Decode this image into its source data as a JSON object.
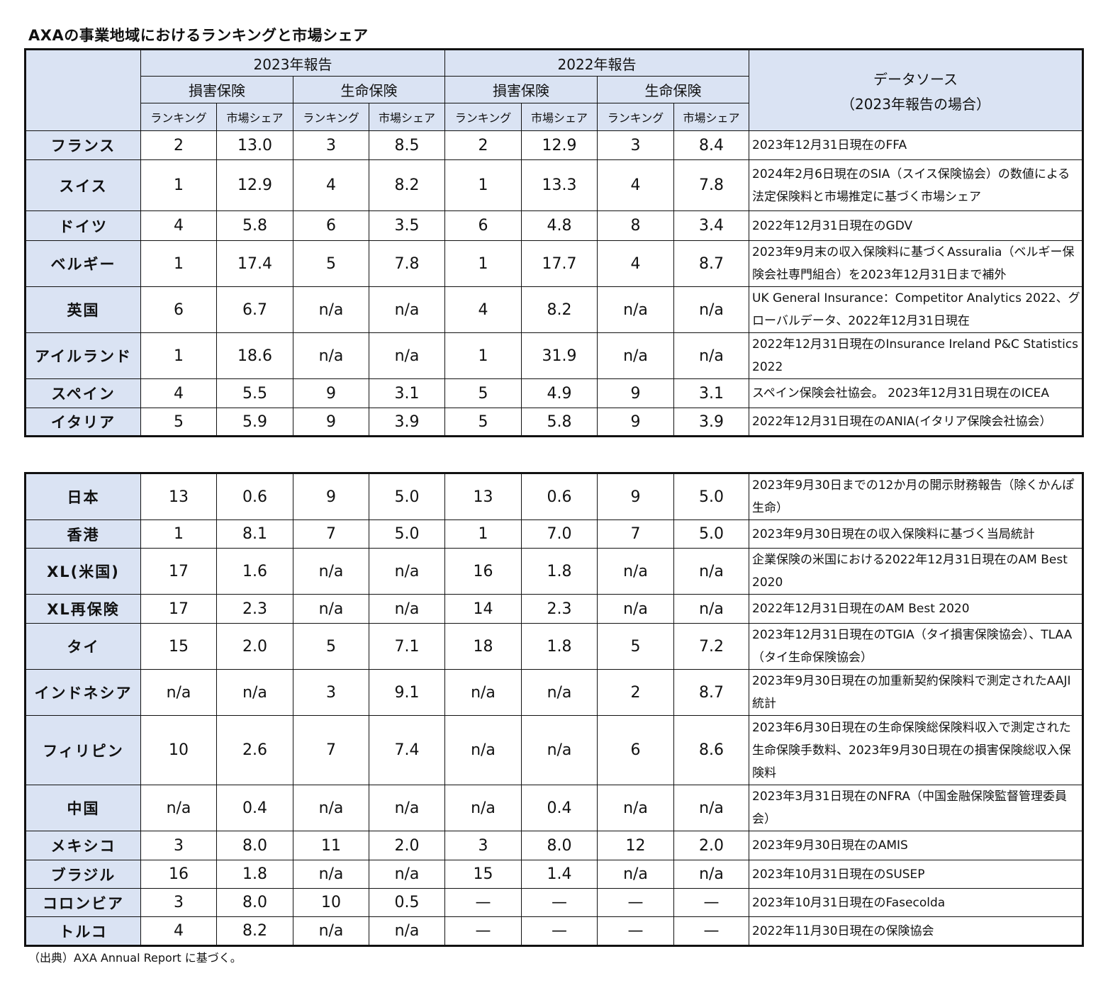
{
  "title": "AXAの事業地域におけるランキングと市場シェア",
  "header": {
    "year2023": "2023年報告",
    "year2022": "2022年報告",
    "nonlife": "損害保険",
    "life": "生命保険",
    "ranking": "ランキング",
    "share": "市場シェア",
    "source_line1": "データソース",
    "source_line2": "（2023年報告の場合）"
  },
  "table1": [
    {
      "country": "フランス",
      "values": [
        "2",
        "13.0",
        "3",
        "8.5",
        "2",
        "12.9",
        "3",
        "8.4"
      ],
      "source": "2023年12月31日現在のFFA"
    },
    {
      "country": "スイス",
      "values": [
        "1",
        "12.9",
        "4",
        "8.2",
        "1",
        "13.3",
        "4",
        "7.8"
      ],
      "source": "2024年2月6日現在のSIA（スイス保険協会）の数値による法定保険料と市場推定に基づく市場シェア"
    },
    {
      "country": "ドイツ",
      "values": [
        "4",
        "5.8",
        "6",
        "3.5",
        "6",
        "4.8",
        "8",
        "3.4"
      ],
      "source": "2022年12月31日現在のGDV"
    },
    {
      "country": "ベルギー",
      "values": [
        "1",
        "17.4",
        "5",
        "7.8",
        "1",
        "17.7",
        "4",
        "8.7"
      ],
      "source": "2023年9月末の収入保険料に基づくAssuralia（ベルギー保険会社専門組合）を2023年12月31日まで補外"
    },
    {
      "country": "英国",
      "values": [
        "6",
        "6.7",
        "n/a",
        "n/a",
        "4",
        "8.2",
        "n/a",
        "n/a"
      ],
      "source": "UK General Insurance：Competitor Analytics 2022、グローバルデータ、2022年12月31日現在"
    },
    {
      "country": "アイルランド",
      "values": [
        "1",
        "18.6",
        "n/a",
        "n/a",
        "1",
        "31.9",
        "n/a",
        "n/a"
      ],
      "source": "2022年12月31日現在のInsurance Ireland P&C Statistics 2022"
    },
    {
      "country": "スペイン",
      "values": [
        "4",
        "5.5",
        "9",
        "3.1",
        "5",
        "4.9",
        "9",
        "3.1"
      ],
      "source": "スペイン保険会社協会。 2023年12月31日現在のICEA"
    },
    {
      "country": "イタリア",
      "values": [
        "5",
        "5.9",
        "9",
        "3.9",
        "5",
        "5.8",
        "9",
        "3.9"
      ],
      "source": "2022年12月31日現在のANIA(イタリア保険会社協会）"
    }
  ],
  "table2": [
    {
      "country": "日本",
      "values": [
        "13",
        "0.6",
        "9",
        "5.0",
        "13",
        "0.6",
        "9",
        "5.0"
      ],
      "source": "2023年9月30日までの12か月の開示財務報告（除くかんぽ生命）"
    },
    {
      "country": "香港",
      "values": [
        "1",
        "8.1",
        "7",
        "5.0",
        "1",
        "7.0",
        "7",
        "5.0"
      ],
      "source": "2023年9月30日現在の収入保険料に基づく当局統計"
    },
    {
      "country": "XL(米国)",
      "values": [
        "17",
        "1.6",
        "n/a",
        "n/a",
        "16",
        "1.8",
        "n/a",
        "n/a"
      ],
      "source": "企業保険の米国における2022年12月31日現在のAM Best 2020"
    },
    {
      "country": "XL再保険",
      "values": [
        "17",
        "2.3",
        "n/a",
        "n/a",
        "14",
        "2.3",
        "n/a",
        "n/a"
      ],
      "source": "2022年12月31日現在のAM Best 2020"
    },
    {
      "country": "タイ",
      "values": [
        "15",
        "2.0",
        "5",
        "7.1",
        "18",
        "1.8",
        "5",
        "7.2"
      ],
      "source": "2023年12月31日現在のTGIA（タイ損害保険協会）、TLAA（タイ生命保険協会）"
    },
    {
      "country": "インドネシア",
      "values": [
        "n/a",
        "n/a",
        "3",
        "9.1",
        "n/a",
        "n/a",
        "2",
        "8.7"
      ],
      "source": "2023年9月30日現在の加重新契約保険料で測定されたAAJI統計"
    },
    {
      "country": "フィリピン",
      "values": [
        "10",
        "2.6",
        "7",
        "7.4",
        "n/a",
        "n/a",
        "6",
        "8.6"
      ],
      "source": "2023年6月30日現在の生命保険総保険料収入で測定された生命保険手数料、2023年9月30日現在の損害保険総収入保険料"
    },
    {
      "country": "中国",
      "values": [
        "n/a",
        "0.4",
        "n/a",
        "n/a",
        "n/a",
        "0.4",
        "n/a",
        "n/a"
      ],
      "source": "2023年3月31日現在のNFRA（中国金融保険監督管理委員会）"
    },
    {
      "country": "メキシコ",
      "values": [
        "3",
        "8.0",
        "11",
        "2.0",
        "3",
        "8.0",
        "12",
        "2.0"
      ],
      "source": "2023年9月30日現在のAMIS"
    },
    {
      "country": "ブラジル",
      "values": [
        "16",
        "1.8",
        "n/a",
        "n/a",
        "15",
        "1.4",
        "n/a",
        "n/a"
      ],
      "source": "2023年10月31日現在のSUSEP"
    },
    {
      "country": "コロンビア",
      "values": [
        "3",
        "8.0",
        "10",
        "0.5",
        "—",
        "—",
        "—",
        "—"
      ],
      "source": "2023年10月31日現在のFasecolda"
    },
    {
      "country": "トルコ",
      "values": [
        "4",
        "8.2",
        "n/a",
        "n/a",
        "—",
        "—",
        "—",
        "—"
      ],
      "source": "2022年11月30日現在の保険協会"
    }
  ],
  "note": "（出典）AXA Annual Report に基づく。",
  "colors": {
    "header_bg": "#dae3f3",
    "border": "#111111"
  }
}
